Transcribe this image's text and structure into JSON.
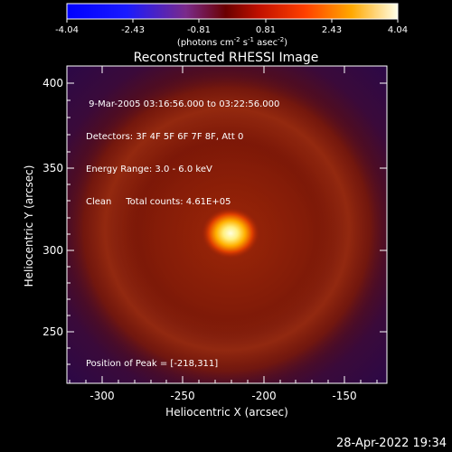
{
  "colorbar": {
    "ticks": [
      "-4.04",
      "-2.43",
      "-0.81",
      "0.81",
      "2.43",
      "4.04"
    ],
    "label_main": "(photons cm",
    "label_exp1": "-2",
    "label_mid": " s",
    "label_exp2": "-1",
    "label_end": " asec",
    "label_exp3": "-2",
    "label_close": ")"
  },
  "plot": {
    "title": "Reconstructed RHESSI Image",
    "info_lines": [
      " 9-Mar-2005 03:16:56.000 to 03:22:56.000",
      "Detectors: 3F 4F 5F 6F 7F 8F, Att 0",
      "Energy Range: 3.0 - 6.0 keV",
      "Clean     Total counts: 4.61E+05"
    ],
    "peak_text": "Position of Peak = [-218,311]",
    "xlabel": "Heliocentric X (arcsec)",
    "ylabel": "Heliocentric Y (arcsec)",
    "x_ticks": [
      "-300",
      "-250",
      "-200",
      "-150"
    ],
    "y_ticks": [
      "250",
      "300",
      "350",
      "400"
    ]
  },
  "timestamp": "28-Apr-2022 19:34"
}
